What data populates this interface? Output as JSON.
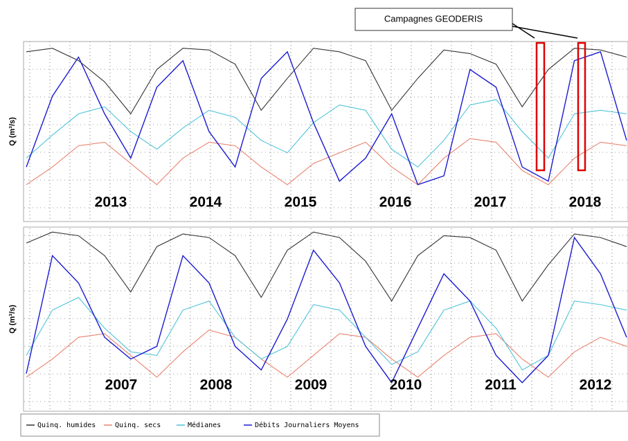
{
  "chart_data": [
    {
      "type": "line",
      "annotation": "Campagnes GEODERIS",
      "y_label": "Q (m³/s)",
      "year_labels": [
        "2013",
        "2014",
        "2015",
        "2016",
        "2017",
        "2018"
      ],
      "ylim": [
        0,
        100
      ],
      "series": [
        {
          "name": "Quinq. humides",
          "color": "#333333",
          "values": [
            95,
            97,
            90,
            78,
            60,
            85,
            97,
            96,
            88,
            62,
            80,
            97,
            95,
            90,
            62,
            80,
            96,
            94,
            88,
            64,
            85,
            97,
            96,
            92
          ]
        },
        {
          "name": "Quinq. secs",
          "color": "#e8826e",
          "values": [
            20,
            30,
            42,
            44,
            32,
            20,
            35,
            44,
            42,
            30,
            20,
            32,
            38,
            44,
            30,
            20,
            35,
            46,
            44,
            28,
            20,
            35,
            44,
            42
          ]
        },
        {
          "name": "Médianes",
          "color": "#4ec3d8",
          "values": [
            35,
            48,
            60,
            64,
            50,
            40,
            52,
            62,
            58,
            45,
            38,
            55,
            65,
            62,
            40,
            30,
            45,
            65,
            68,
            50,
            35,
            60,
            62,
            60
          ]
        },
        {
          "name": "Débits Journaliers Moyens",
          "color": "#1a1ad0",
          "values": [
            30,
            70,
            92,
            60,
            35,
            75,
            90,
            50,
            30,
            80,
            95,
            55,
            22,
            35,
            60,
            20,
            25,
            85,
            75,
            30,
            22,
            90,
            95,
            45
          ]
        }
      ]
    },
    {
      "type": "line",
      "y_label": "Q (m³/s)",
      "year_labels": [
        "2007",
        "2008",
        "2009",
        "2010",
        "2011",
        "2012"
      ],
      "ylim": [
        0,
        100
      ],
      "series": [
        {
          "name": "Quinq. humides",
          "color": "#333333",
          "values": [
            92,
            98,
            96,
            85,
            65,
            90,
            97,
            95,
            85,
            62,
            88,
            98,
            95,
            82,
            60,
            85,
            96,
            95,
            88,
            60,
            80,
            97,
            95,
            90
          ]
        },
        {
          "name": "Quinq. secs",
          "color": "#e8826e",
          "values": [
            18,
            28,
            40,
            42,
            30,
            18,
            32,
            44,
            40,
            28,
            18,
            30,
            42,
            40,
            28,
            18,
            30,
            40,
            42,
            28,
            18,
            32,
            40,
            35
          ]
        },
        {
          "name": "Médianes",
          "color": "#4ec3d8",
          "values": [
            30,
            55,
            62,
            45,
            32,
            30,
            55,
            60,
            40,
            28,
            35,
            58,
            55,
            40,
            25,
            32,
            55,
            60,
            45,
            22,
            30,
            60,
            58,
            55
          ]
        },
        {
          "name": "Débits Journaliers Moyens",
          "color": "#1a1ad0",
          "values": [
            20,
            85,
            70,
            40,
            28,
            35,
            85,
            70,
            35,
            22,
            50,
            88,
            70,
            35,
            15,
            45,
            75,
            60,
            30,
            15,
            30,
            95,
            75,
            40
          ]
        }
      ]
    }
  ]
}
